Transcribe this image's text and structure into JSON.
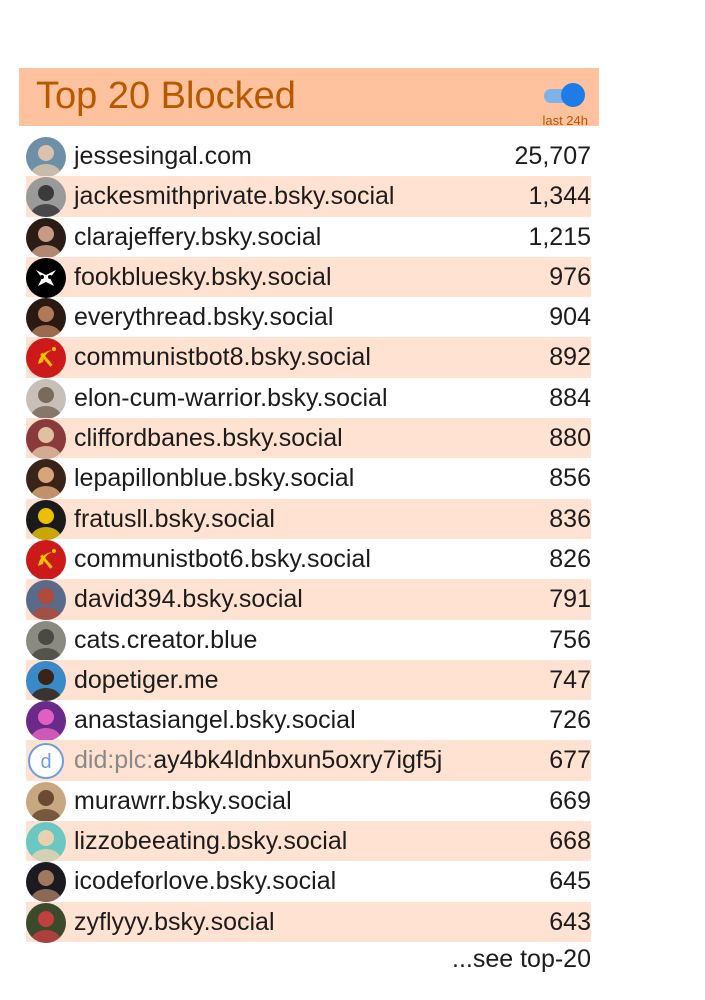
{
  "header": {
    "title": "Top 20 Blocked",
    "toggle_label": "last 24h",
    "toggle_on": true
  },
  "colors": {
    "header_bg": "#ffc29f",
    "title": "#b85900",
    "row_alt": "#ffe2d2",
    "toggle": "#1e7ce8"
  },
  "rows": [
    {
      "handle": "jessesingal.com",
      "count": "25,707",
      "avatar": "photo-avatar"
    },
    {
      "handle": "jackesmithprivate.bsky.social",
      "count": "1,344",
      "avatar": "photo-avatar"
    },
    {
      "handle": "clarajeffery.bsky.social",
      "count": "1,215",
      "avatar": "photo-avatar"
    },
    {
      "handle": "fookbluesky.bsky.social",
      "count": "976",
      "avatar": "skull-avatar"
    },
    {
      "handle": "everythread.bsky.social",
      "count": "904",
      "avatar": "photo-avatar"
    },
    {
      "handle": "communistbot8.bsky.social",
      "count": "892",
      "avatar": "hammer-sickle-avatar"
    },
    {
      "handle": "elon-cum-warrior.bsky.social",
      "count": "884",
      "avatar": "photo-avatar"
    },
    {
      "handle": "cliffordbanes.bsky.social",
      "count": "880",
      "avatar": "photo-avatar"
    },
    {
      "handle": "lepapillonblue.bsky.social",
      "count": "856",
      "avatar": "photo-avatar"
    },
    {
      "handle": "fratusll.bsky.social",
      "count": "836",
      "avatar": "photo-avatar"
    },
    {
      "handle": "communistbot6.bsky.social",
      "count": "826",
      "avatar": "hammer-sickle-avatar"
    },
    {
      "handle": "david394.bsky.social",
      "count": "791",
      "avatar": "photo-avatar"
    },
    {
      "handle": "cats.creator.blue",
      "count": "756",
      "avatar": "photo-avatar"
    },
    {
      "handle": "dopetiger.me",
      "count": "747",
      "avatar": "photo-avatar"
    },
    {
      "handle": "anastasiangel.bsky.social",
      "count": "726",
      "avatar": "photo-avatar"
    },
    {
      "prefix": "did:plc:",
      "handle": "ay4bk4ldnbxun5oxry7igf5j",
      "count": "677",
      "avatar": "did-letter-avatar",
      "avatar_letter": "d"
    },
    {
      "handle": "murawrr.bsky.social",
      "count": "669",
      "avatar": "photo-avatar"
    },
    {
      "handle": "lizzobeeating.bsky.social",
      "count": "668",
      "avatar": "photo-avatar"
    },
    {
      "handle": "icodeforlove.bsky.social",
      "count": "645",
      "avatar": "photo-avatar"
    },
    {
      "handle": "zyflyyy.bsky.social",
      "count": "643",
      "avatar": "photo-avatar"
    }
  ],
  "footer": {
    "see_more": "...see top-20"
  }
}
